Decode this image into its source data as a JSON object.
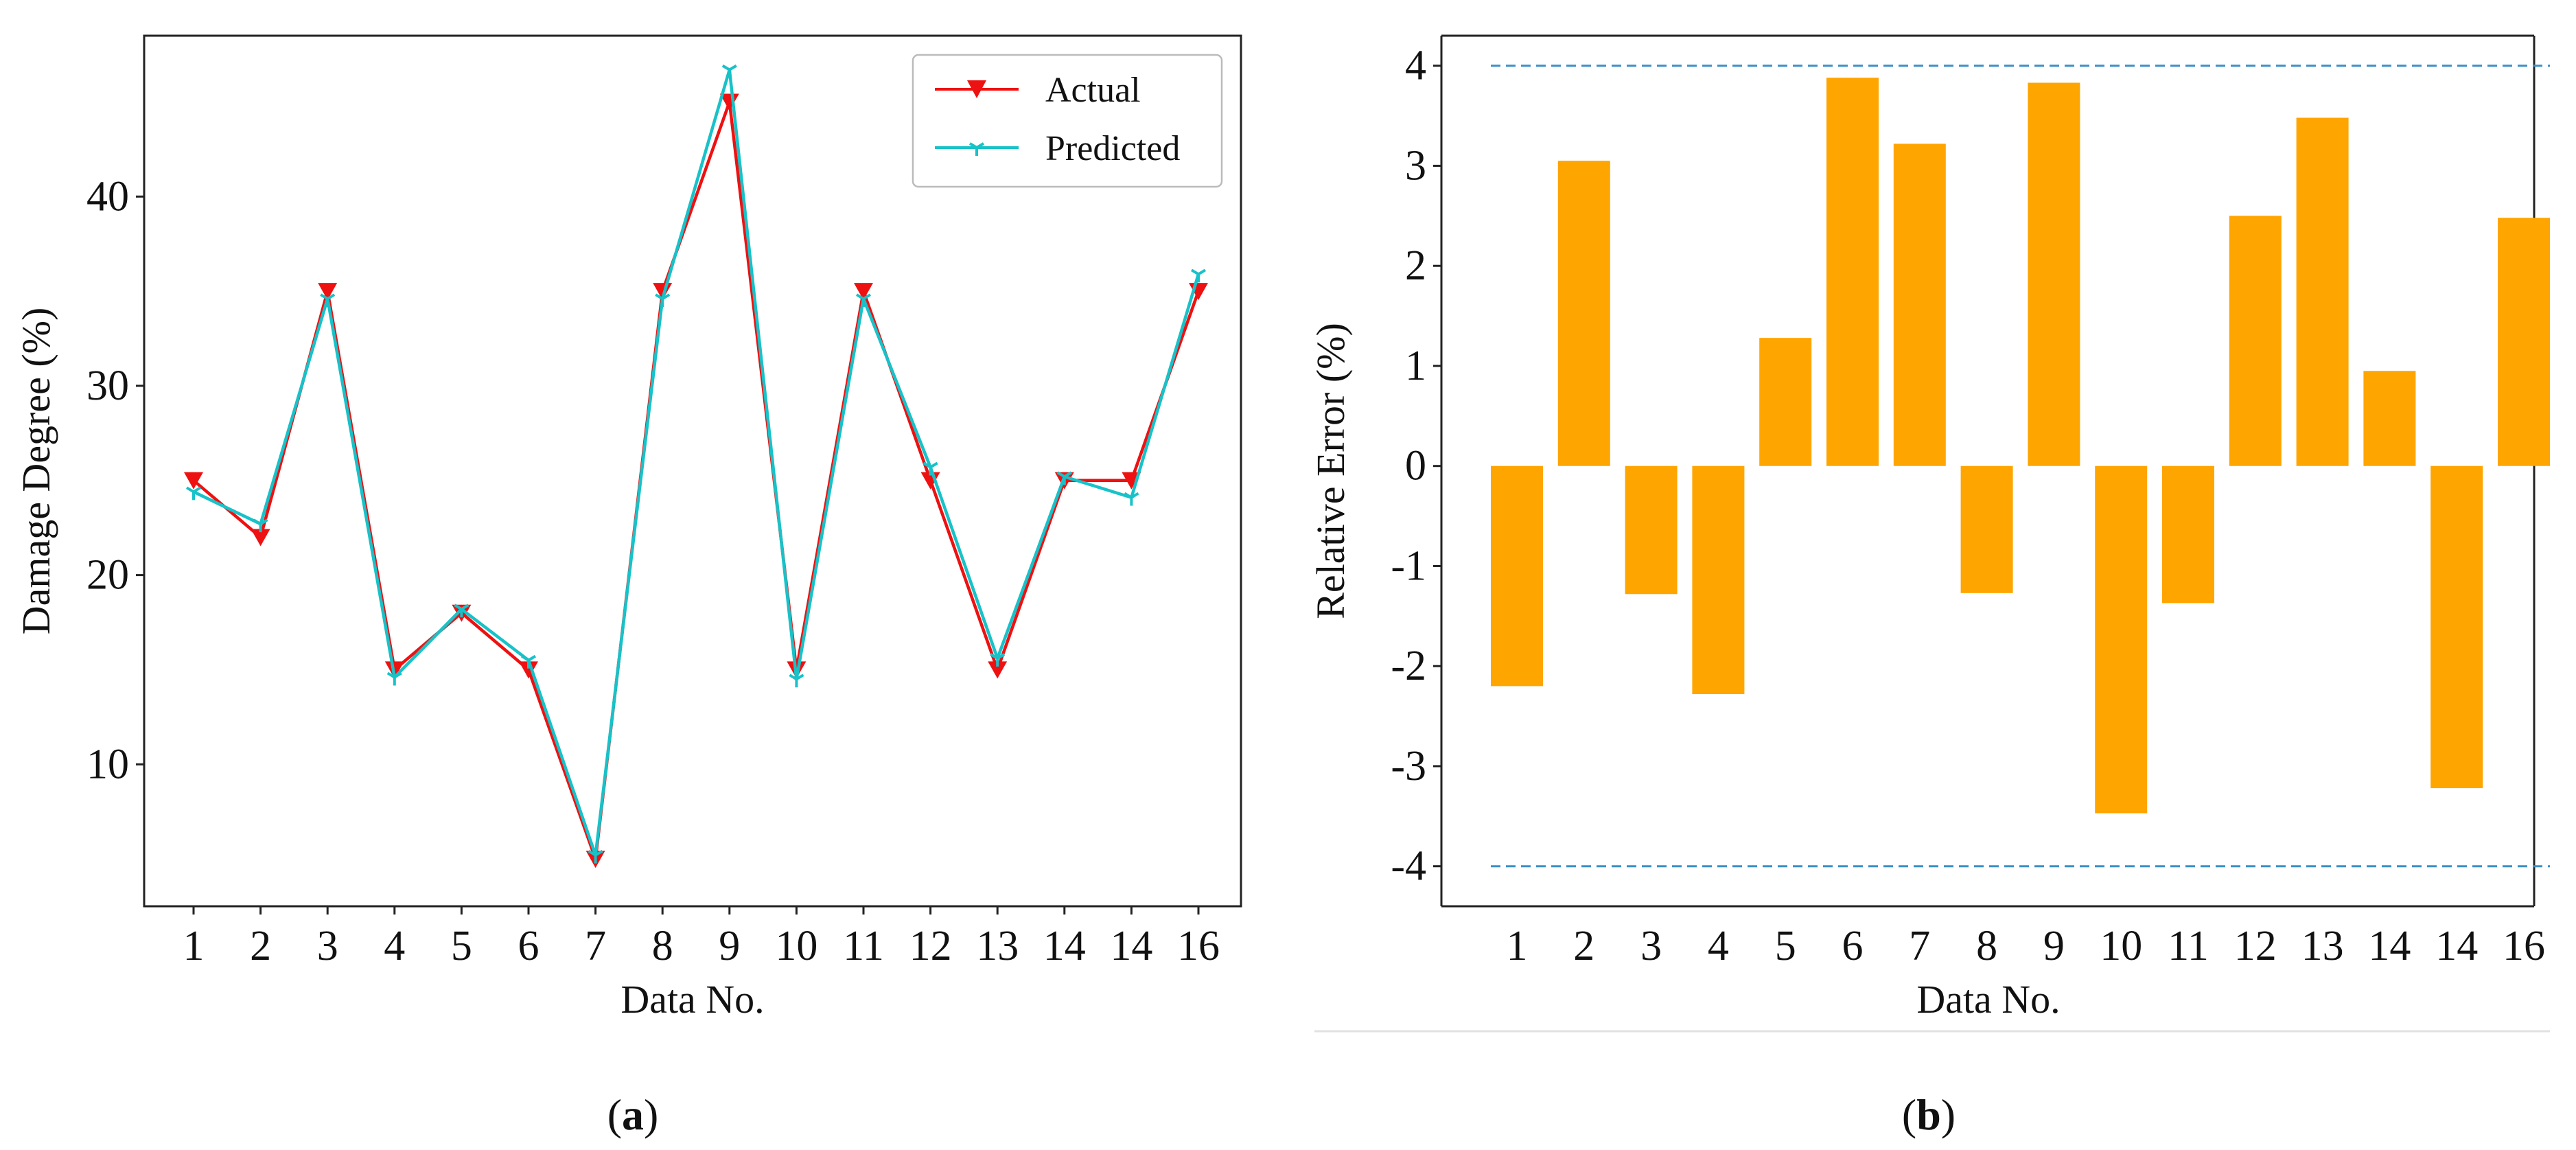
{
  "chart_data": [
    {
      "type": "line",
      "panel": "a",
      "caption": "(a)",
      "caption_parts": [
        "(",
        "a",
        ")"
      ],
      "xlabel": "Data No.",
      "ylabel": "Damage Degree (%)",
      "categories": [
        "1",
        "2",
        "3",
        "4",
        "5",
        "6",
        "7",
        "8",
        "9",
        "10",
        "11",
        "12",
        "13",
        "14",
        "14",
        "16"
      ],
      "ylim": [
        2.5,
        48.5
      ],
      "yticks": [
        10,
        20,
        30,
        40
      ],
      "legend": {
        "placement": "top-right",
        "entries": [
          "Actual",
          "Predicted"
        ]
      },
      "series": [
        {
          "name": "Actual",
          "color": "#ee1111",
          "marker": "triangle-down",
          "values": [
            25,
            22,
            35,
            15,
            18,
            15,
            5,
            35,
            45,
            15,
            35,
            25,
            15,
            25,
            25,
            35
          ]
        },
        {
          "name": "Predicted",
          "color": "#17c2c8",
          "marker": "tri-down",
          "values": [
            24.4,
            22.7,
            34.6,
            14.6,
            18.2,
            15.5,
            5.2,
            34.6,
            46.7,
            14.5,
            34.6,
            25.7,
            15.6,
            25.2,
            24.1,
            35.9
          ]
        }
      ]
    },
    {
      "type": "bar",
      "panel": "b",
      "caption": "(b)",
      "caption_parts": [
        "(",
        "b",
        ")"
      ],
      "xlabel": "Data No.",
      "ylabel": "Relative Error (%)",
      "categories": [
        "1",
        "2",
        "3",
        "4",
        "5",
        "6",
        "7",
        "8",
        "9",
        "10",
        "11",
        "12",
        "13",
        "14",
        "14",
        "16"
      ],
      "ylim": [
        -4.4,
        4.3
      ],
      "yticks": [
        -4,
        -3,
        -2,
        -1,
        0,
        1,
        2,
        3,
        4
      ],
      "values": [
        -2.2,
        3.05,
        -1.28,
        -2.28,
        1.28,
        3.88,
        3.22,
        -1.27,
        3.83,
        -3.47,
        -1.37,
        2.5,
        3.48,
        0.95,
        -3.22,
        2.48
      ],
      "bar_color": "#ffa500",
      "reference_lines": [
        4,
        -4
      ],
      "reference_color": "#3a8fc8"
    }
  ]
}
